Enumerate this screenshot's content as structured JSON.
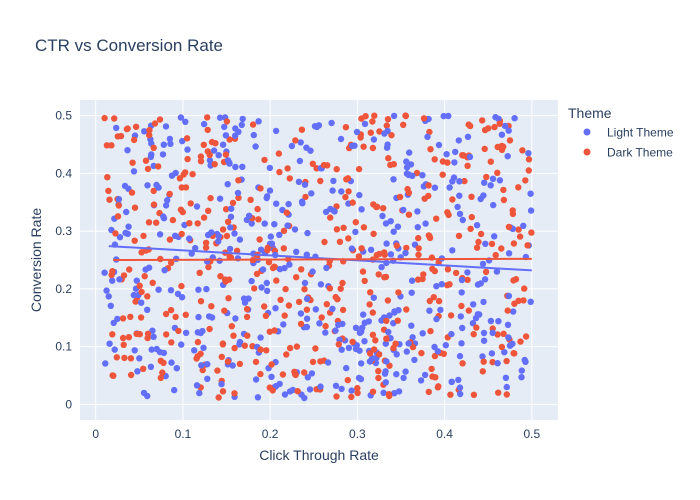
{
  "chart_data": {
    "type": "scatter",
    "title": "CTR vs Conversion Rate",
    "xlabel": "Click Through Rate",
    "ylabel": "Conversion Rate",
    "xlim": [
      -0.018,
      0.53
    ],
    "ylim": [
      -0.027,
      0.527
    ],
    "x_ticks": [
      "0",
      "0.1",
      "0.2",
      "0.3",
      "0.4",
      "0.5"
    ],
    "y_ticks": [
      "0",
      "0.1",
      "0.2",
      "0.3",
      "0.4",
      "0.5"
    ],
    "grid": true,
    "legend": {
      "title": "Theme",
      "placement": "right"
    },
    "colors": {
      "plot_bg": "#e5ecf6",
      "grid": "#ffffff",
      "light": "#636efa",
      "dark": "#ef553b"
    },
    "series": [
      {
        "name": "Light Theme",
        "color": "#636efa",
        "point_count": 500,
        "x_range": [
          0.01,
          0.5
        ],
        "y_range": [
          0.01,
          0.5
        ],
        "trendline": {
          "x": [
            0.015,
            0.5
          ],
          "y": [
            0.274,
            0.232
          ]
        }
      },
      {
        "name": "Dark Theme",
        "color": "#ef553b",
        "point_count": 500,
        "x_range": [
          0.01,
          0.5
        ],
        "y_range": [
          0.01,
          0.5
        ],
        "trendline": {
          "x": [
            0.02,
            0.5
          ],
          "y": [
            0.25,
            0.252
          ]
        }
      }
    ]
  }
}
